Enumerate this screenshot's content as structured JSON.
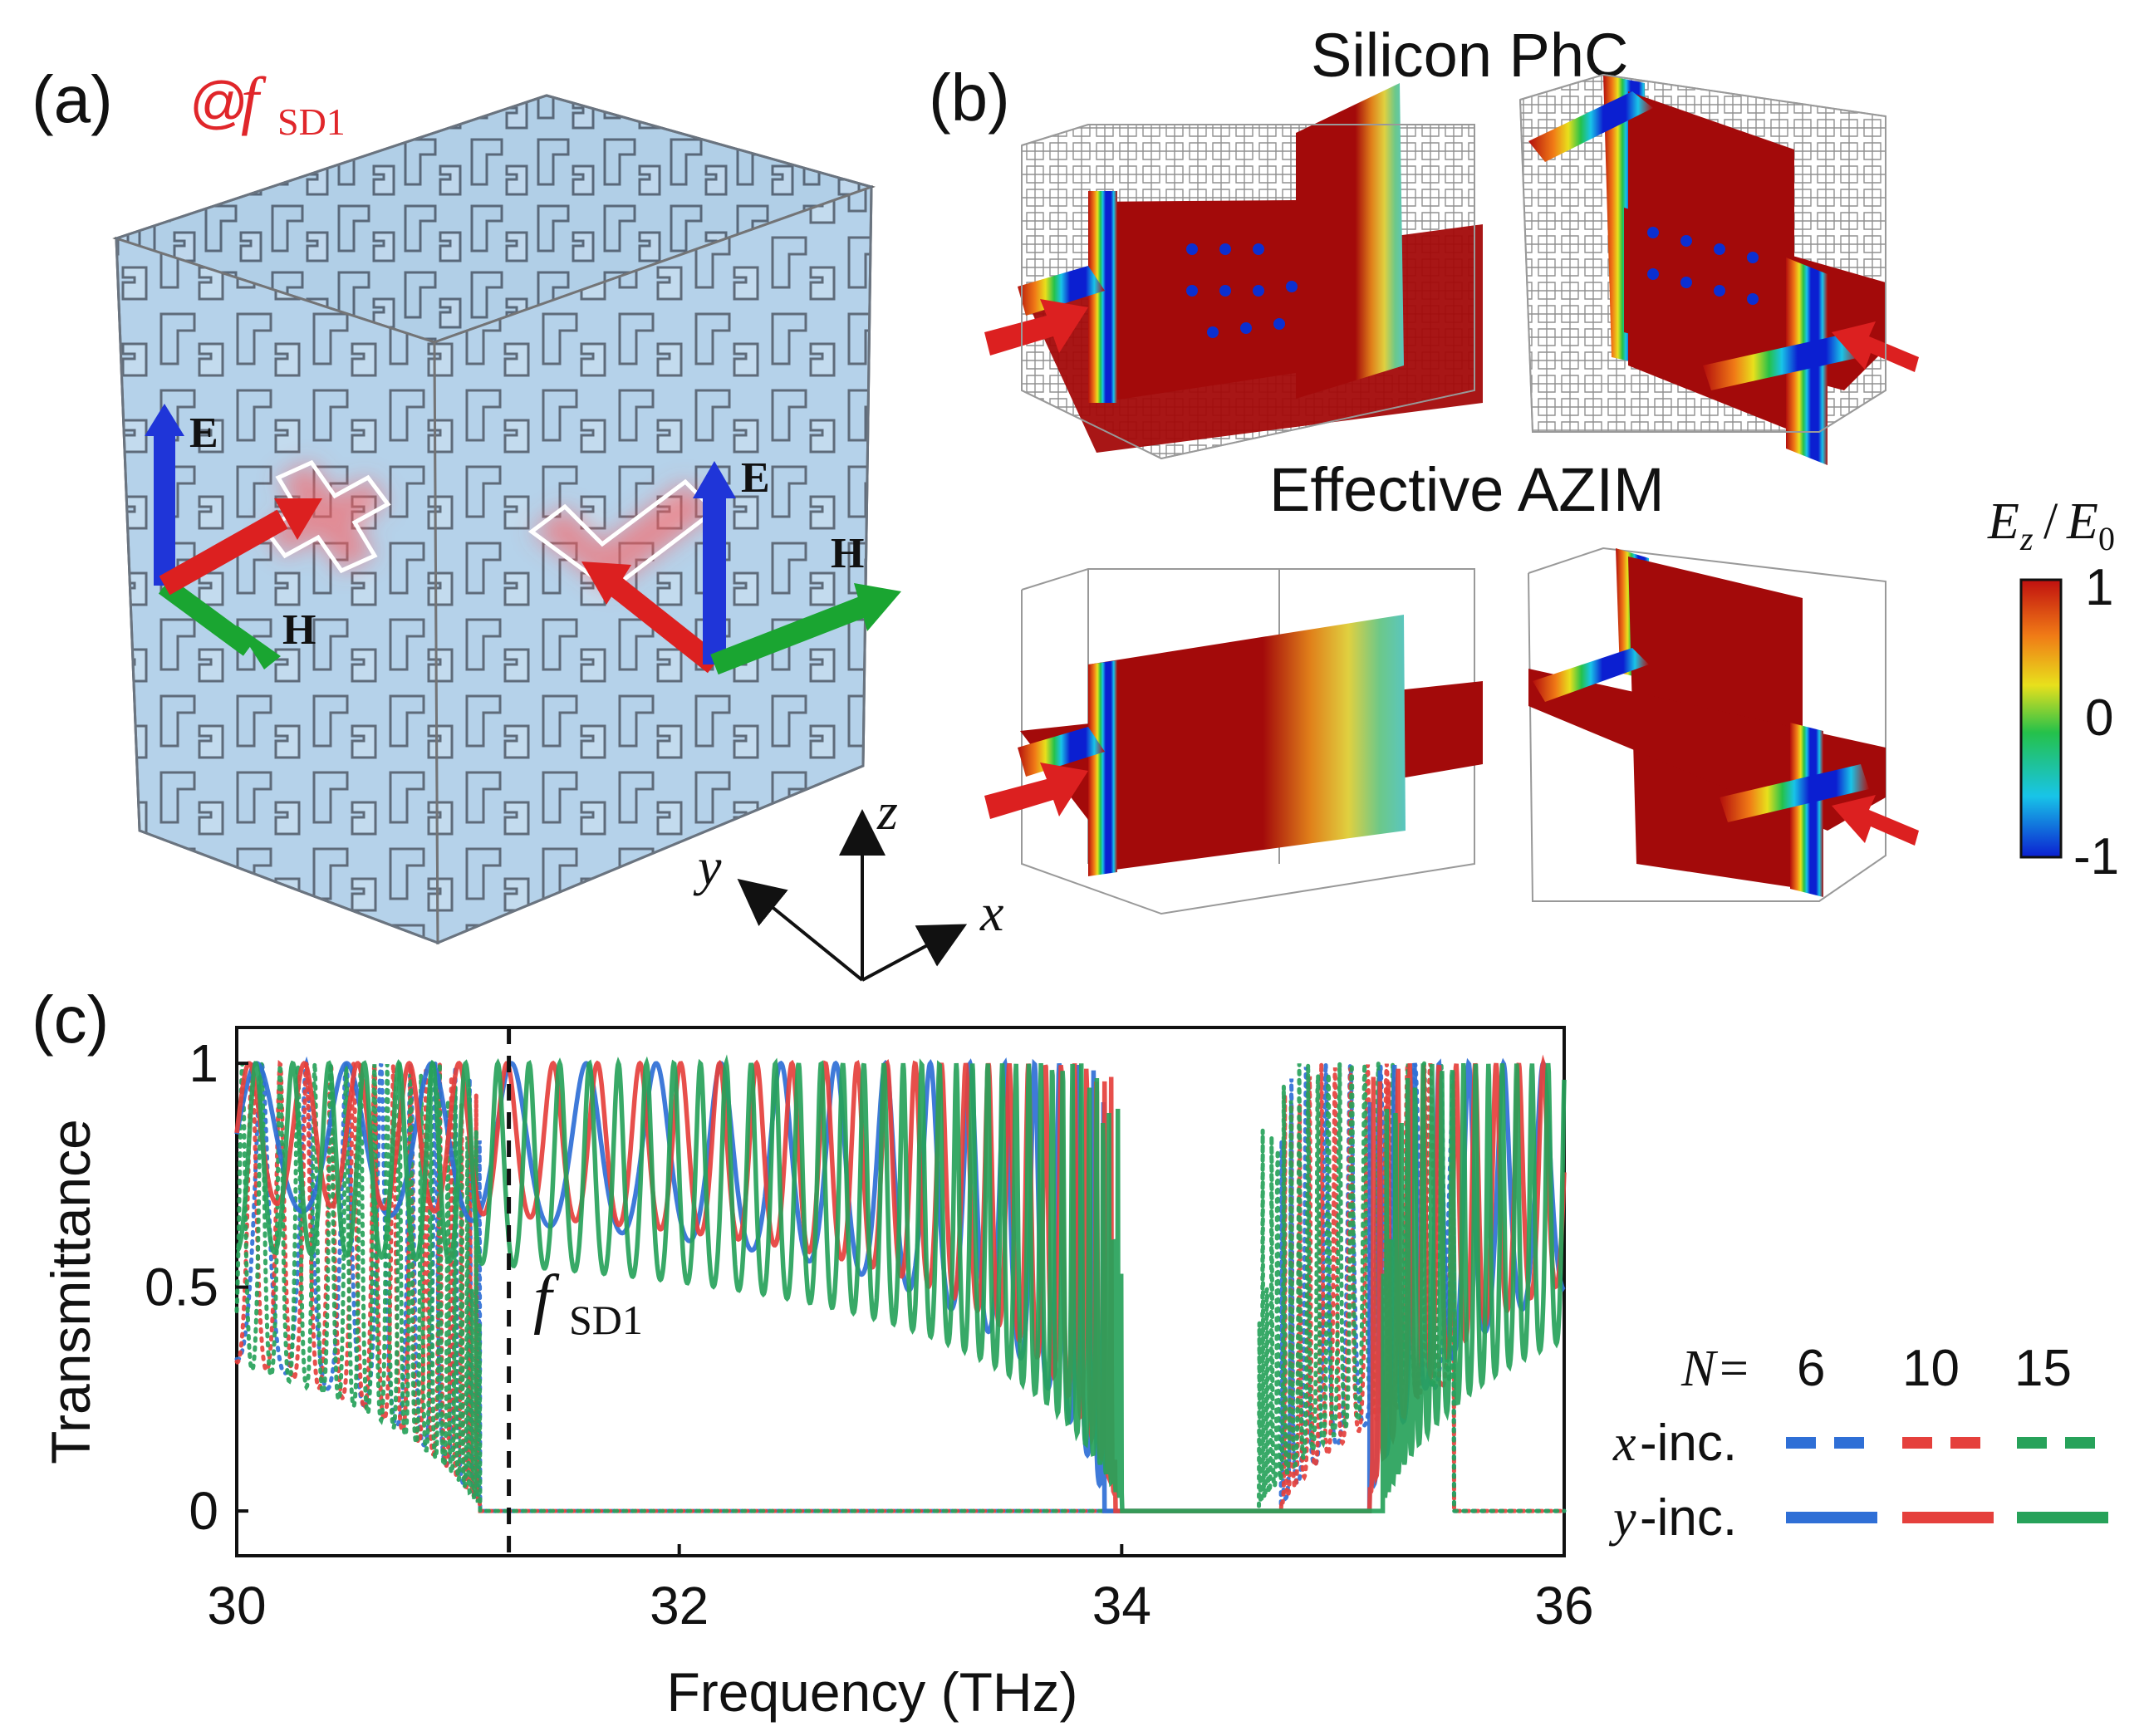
{
  "panel_a": {
    "label": "(a)",
    "freq_tag_at": "@",
    "freq_tag_f": "f",
    "freq_tag_sub": "SD1",
    "left_e": "E",
    "left_h": "H",
    "right_e": "E",
    "right_h": "H",
    "colors": {
      "lattice": "#a9cde9",
      "box": "#c9d3df",
      "e_arrow": "#1f35d8",
      "h_arrow": "#1aa531",
      "k_arrow": "#dc2020",
      "label_red": "#e0262a"
    }
  },
  "axes_triad": {
    "x": "x",
    "y": "y",
    "z": "z"
  },
  "panel_b": {
    "label": "(b)",
    "row1_title": "Silicon PhC",
    "row2_title": "Effective AZIM",
    "colorbar": {
      "label_e": "E",
      "label_z": "z",
      "label_slash": "/",
      "label_e0": "E",
      "label_0": "0",
      "ticks": [
        "1",
        "0",
        "-1"
      ],
      "colors": [
        "#0b1fd1",
        "#18c4e8",
        "#25c14a",
        "#e8e01c",
        "#f07a16",
        "#c0100f"
      ]
    }
  },
  "panel_c": {
    "label": "(c)",
    "annotation_f": "f",
    "annotation_sub": "SD1",
    "legend": {
      "n_label": "N",
      "n_eq": "=",
      "n_values": [
        "6",
        "10",
        "15"
      ],
      "x_inc_var": "x",
      "x_inc_suffix": "-inc.",
      "y_inc_var": "y",
      "y_inc_suffix": "-inc.",
      "colors": [
        "#2f6fd6",
        "#e5403c",
        "#27a25a"
      ]
    }
  },
  "chart_data": {
    "type": "line",
    "title": "",
    "xlabel": "Frequency (THz)",
    "ylabel": "Transmittance",
    "xlim": [
      30,
      36
    ],
    "ylim": [
      -0.1,
      1.08
    ],
    "xticks": [
      30,
      32,
      34,
      36
    ],
    "yticks": [
      0,
      0.5,
      1
    ],
    "xtick_labels": [
      "30",
      "32",
      "34",
      "36"
    ],
    "ytick_labels": [
      "0",
      "0.5",
      "1"
    ],
    "vline": {
      "x": 31.23,
      "style": "dashed",
      "label": "fSD1"
    },
    "bandgap_x_inc": [
      31.1,
      34.65
    ],
    "bandgap_y_inc": [
      34.0,
      35.15
    ],
    "series": [
      {
        "name": "x-inc. N=6",
        "style": "dotted",
        "color": "#2f6fd6",
        "cells": 6,
        "band": [
          30.0,
          31.1
        ],
        "band2": [
          34.72,
          35.5
        ],
        "min": 0.3
      },
      {
        "name": "x-inc. N=10",
        "style": "dotted",
        "color": "#e5403c",
        "cells": 10,
        "band": [
          30.0,
          31.1
        ],
        "band2": [
          34.72,
          35.5
        ],
        "min": 0.28
      },
      {
        "name": "x-inc. N=15",
        "style": "dotted",
        "color": "#27a25a",
        "cells": 15,
        "band": [
          30.0,
          31.1
        ],
        "band2": [
          34.62,
          35.5
        ],
        "min": 0.25
      },
      {
        "name": "y-inc. N=6",
        "style": "solid",
        "color": "#2f6fd6",
        "cells": 6,
        "band": [
          30.0,
          33.92
        ],
        "band2": [
          35.12,
          36.0
        ],
        "min": 0.68
      },
      {
        "name": "y-inc. N=10",
        "style": "solid",
        "color": "#e5403c",
        "cells": 10,
        "band": [
          30.0,
          33.97
        ],
        "band2": [
          35.12,
          36.0
        ],
        "min": 0.7
      },
      {
        "name": "y-inc. N=15",
        "style": "solid",
        "color": "#27a25a",
        "cells": 15,
        "band": [
          30.0,
          34.0
        ],
        "band2": [
          35.18,
          36.0
        ],
        "min": 0.52
      }
    ]
  }
}
